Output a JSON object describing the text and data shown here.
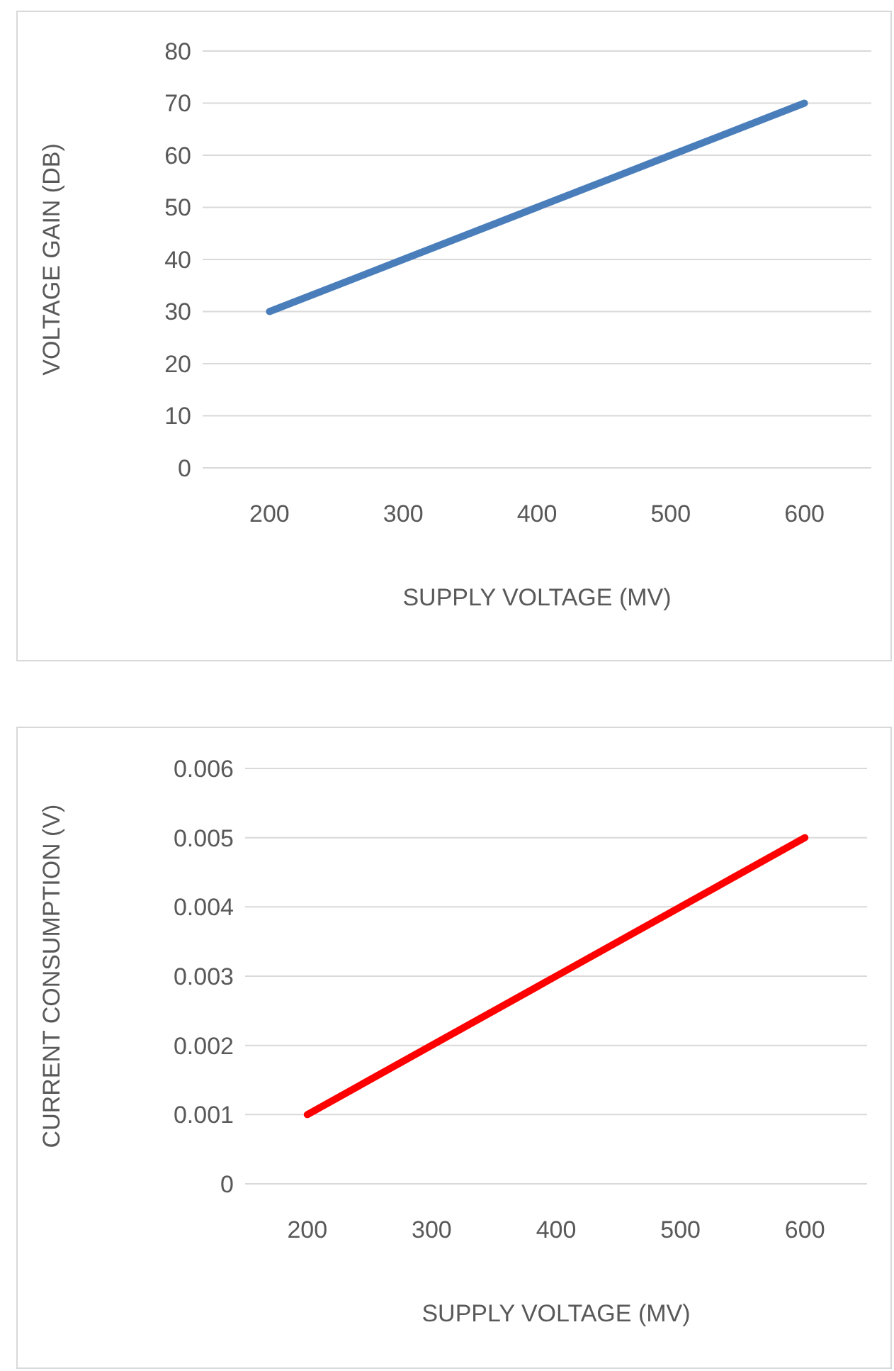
{
  "chart_data": [
    {
      "type": "line",
      "categories": [
        "200",
        "300",
        "400",
        "500",
        "600"
      ],
      "xlabel": "SUPPLY VOLTAGE (MV)",
      "ylabel": "VOLTAGE GAIN (DB)",
      "ylim": [
        0,
        80
      ],
      "yticks": [
        0,
        10,
        20,
        30,
        40,
        50,
        60,
        70,
        80
      ],
      "grid": "y",
      "marker": "none",
      "series": [
        {
          "color": "#4a7ebb",
          "values": [
            30,
            40,
            50,
            60,
            70
          ]
        }
      ]
    },
    {
      "type": "line",
      "categories": [
        "200",
        "300",
        "400",
        "500",
        "600"
      ],
      "xlabel": "SUPPLY VOLTAGE (MV)",
      "ylabel": "CURRENT CONSUMPTION (V)",
      "ylim": [
        0,
        0.006
      ],
      "yticks": [
        0,
        0.001,
        0.002,
        0.003,
        0.004,
        0.005,
        0.006
      ],
      "grid": "y",
      "marker": "none",
      "series": [
        {
          "color": "#ff0000",
          "values": [
            0.001,
            0.002,
            0.003,
            0.004,
            0.005
          ]
        }
      ]
    }
  ]
}
